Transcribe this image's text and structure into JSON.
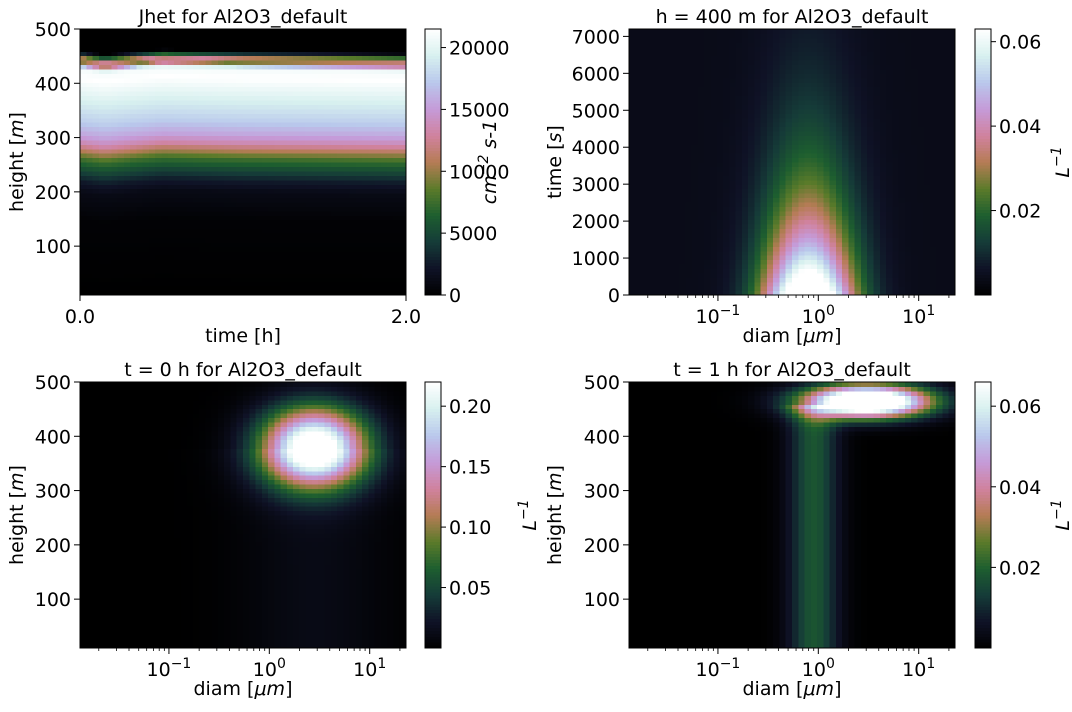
{
  "colormap_stops": [
    [
      0.0,
      "#000000"
    ],
    [
      0.1,
      "#0f1226"
    ],
    [
      0.2,
      "#153b38"
    ],
    [
      0.3,
      "#1d5e2f"
    ],
    [
      0.4,
      "#5b7b2a"
    ],
    [
      0.5,
      "#b57c55"
    ],
    [
      0.6,
      "#d0829e"
    ],
    [
      0.7,
      "#c59ad8"
    ],
    [
      0.8,
      "#b9c8ec"
    ],
    [
      0.9,
      "#d7f0ef"
    ],
    [
      1.0,
      "#ffffff"
    ]
  ],
  "chart_data": [
    {
      "type": "heatmap",
      "title": "Jhet for Al2O3_default",
      "xlabel": "time [h]",
      "ylabel": "height [$m$]",
      "xscale": "linear",
      "xlim": [
        0,
        2.0
      ],
      "ylim": [
        10,
        500
      ],
      "xticks": [
        {
          "v": 0,
          "label": "0.0"
        },
        {
          "v": 2.0,
          "label": "2.0"
        }
      ],
      "yticks": [
        {
          "v": 100,
          "label": "100"
        },
        {
          "v": 200,
          "label": "200"
        },
        {
          "v": 300,
          "label": "300"
        },
        {
          "v": 400,
          "label": "400"
        },
        {
          "v": 500,
          "label": "500"
        }
      ],
      "colorbar": {
        "label": "cm^-2 s-1",
        "vmin": 0,
        "vmax": 21500,
        "ticks": [
          {
            "v": 0,
            "label": "0"
          },
          {
            "v": 5000,
            "label": "5000"
          },
          {
            "v": 10000,
            "label": "10000"
          },
          {
            "v": 15000,
            "label": "15000"
          },
          {
            "v": 20000,
            "label": "20000"
          }
        ]
      },
      "field": {
        "model": "height_profile",
        "profile": [
          [
            10,
            0
          ],
          [
            150,
            300
          ],
          [
            200,
            1200
          ],
          [
            220,
            2500
          ],
          [
            240,
            5000
          ],
          [
            260,
            7500
          ],
          [
            275,
            10500
          ],
          [
            290,
            13500
          ],
          [
            305,
            15500
          ],
          [
            330,
            17500
          ],
          [
            360,
            19000
          ],
          [
            390,
            20500
          ],
          [
            410,
            21500
          ],
          [
            425,
            21000
          ],
          [
            430,
            19500
          ],
          [
            438,
            9000
          ],
          [
            445,
            13000
          ],
          [
            452,
            6000
          ],
          [
            460,
            0
          ],
          [
            500,
            0
          ]
        ],
        "time_shift": [
          [
            0.0,
            0
          ],
          [
            0.15,
            -6
          ],
          [
            0.5,
            4
          ],
          [
            1.0,
            0
          ],
          [
            2.0,
            -4
          ]
        ]
      }
    },
    {
      "type": "heatmap",
      "title": "h = 400 m for Al2O3_default",
      "xlabel": "diam [$\\mu m$]",
      "ylabel": "time [$s$]",
      "xscale": "log",
      "xlim": [
        0.013,
        23
      ],
      "ylim": [
        0,
        7200
      ],
      "xticks": [
        {
          "v": 0.1,
          "label": "10^-1"
        },
        {
          "v": 1,
          "label": "10^0"
        },
        {
          "v": 10,
          "label": "10^1"
        }
      ],
      "yticks": [
        {
          "v": 0,
          "label": "0"
        },
        {
          "v": 1000,
          "label": "1000"
        },
        {
          "v": 2000,
          "label": "2000"
        },
        {
          "v": 3000,
          "label": "3000"
        },
        {
          "v": 4000,
          "label": "4000"
        },
        {
          "v": 5000,
          "label": "5000"
        },
        {
          "v": 6000,
          "label": "6000"
        },
        {
          "v": 7000,
          "label": "7000"
        }
      ],
      "colorbar": {
        "label": "L^-1",
        "vmin": 0,
        "vmax": 0.063,
        "ticks": [
          {
            "v": 0.02,
            "label": "0.02"
          },
          {
            "v": 0.04,
            "label": "0.04"
          },
          {
            "v": 0.06,
            "label": "0.06"
          }
        ]
      },
      "field": {
        "model": "time_size",
        "center_diam": 0.8,
        "sigma_log10": 0.32,
        "decay_s": 2300,
        "background": 0.004,
        "peak": 0.08
      }
    },
    {
      "type": "heatmap",
      "title": "t = 0 h for Al2O3_default",
      "xlabel": "diam [$\\mu m$]",
      "ylabel": "height [$m$]",
      "xscale": "log",
      "xlim": [
        0.013,
        23
      ],
      "ylim": [
        10,
        500
      ],
      "xticks": [
        {
          "v": 0.1,
          "label": "10^-1"
        },
        {
          "v": 1,
          "label": "10^0"
        },
        {
          "v": 10,
          "label": "10^1"
        }
      ],
      "yticks": [
        {
          "v": 100,
          "label": "100"
        },
        {
          "v": 200,
          "label": "200"
        },
        {
          "v": 300,
          "label": "300"
        },
        {
          "v": 400,
          "label": "400"
        },
        {
          "v": 500,
          "label": "500"
        }
      ],
      "colorbar": {
        "label": "L^-1",
        "vmin": 0,
        "vmax": 0.22,
        "ticks": [
          {
            "v": 0.05,
            "label": "0.05"
          },
          {
            "v": 0.1,
            "label": "0.10"
          },
          {
            "v": 0.15,
            "label": "0.15"
          },
          {
            "v": 0.2,
            "label": "0.20"
          }
        ]
      },
      "field": {
        "model": "blob",
        "center_diam": 2.8,
        "center_height": 380,
        "sigma_log10": 0.36,
        "sigma_height": 50,
        "peak": 0.26,
        "tail_peak": 0.012
      }
    },
    {
      "type": "heatmap",
      "title": "t = 1 h for Al2O3_default",
      "xlabel": "diam [$\\mu m$]",
      "ylabel": "height [$m$]",
      "xscale": "log",
      "xlim": [
        0.013,
        23
      ],
      "ylim": [
        10,
        500
      ],
      "xticks": [
        {
          "v": 0.1,
          "label": "10^-1"
        },
        {
          "v": 1,
          "label": "10^0"
        },
        {
          "v": 10,
          "label": "10^1"
        }
      ],
      "yticks": [
        {
          "v": 100,
          "label": "100"
        },
        {
          "v": 200,
          "label": "200"
        },
        {
          "v": 300,
          "label": "300"
        },
        {
          "v": 400,
          "label": "400"
        },
        {
          "v": 500,
          "label": "500"
        }
      ],
      "colorbar": {
        "label": "L^-1",
        "vmin": 0,
        "vmax": 0.066,
        "ticks": [
          {
            "v": 0.02,
            "label": "0.02"
          },
          {
            "v": 0.04,
            "label": "0.04"
          },
          {
            "v": 0.06,
            "label": "0.06"
          }
        ]
      },
      "field": {
        "model": "column_cap",
        "column_diam": 0.9,
        "column_sigma_log10": 0.17,
        "column_value": 0.018,
        "cap_diam": 3.0,
        "cap_height": 465,
        "cap_sigma_log10": 0.42,
        "cap_sigma_height": 20,
        "cap_peak": 0.1
      }
    }
  ]
}
